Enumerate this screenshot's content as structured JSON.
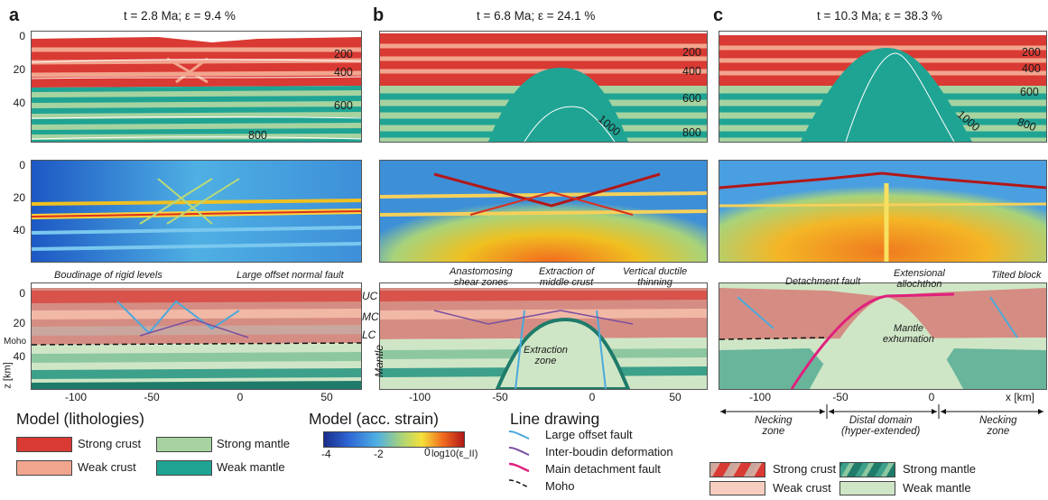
{
  "columns": [
    {
      "letter": "a",
      "title": "t = 2.8 Ma; ε = 9.4 %"
    },
    {
      "letter": "b",
      "title": "t = 6.8 Ma; ε = 24.1 %"
    },
    {
      "letter": "c",
      "title": "t = 10.3 Ma; ε = 38.3 %"
    }
  ],
  "depth_ticks": [
    "0",
    "20",
    "40"
  ],
  "depth_ticks_bottom": [
    "0",
    "20",
    "40"
  ],
  "x_ticks_a": [
    "-100",
    "-50",
    "0",
    "50"
  ],
  "x_ticks_b": [
    "-100",
    "-50",
    "0",
    "50"
  ],
  "x_ticks_c": [
    "-100",
    "-50",
    "0"
  ],
  "x_axis_label": "x [km]",
  "z_axis_label": "z [km]",
  "isotherms_a": [
    "200",
    "400",
    "600",
    "800"
  ],
  "isotherms_b": [
    "200",
    "400",
    "600",
    "1000",
    "800"
  ],
  "isotherms_c": [
    "200",
    "400",
    "600",
    "1000",
    "800"
  ],
  "annotations_a": {
    "boudinage": "Boudinage of rigid levels",
    "large_offset": "Large offset normal fault",
    "moho": "Moho",
    "uc": "UC",
    "mc": "MC",
    "lc": "LC",
    "mantle": "Mantle"
  },
  "annotations_b": {
    "anastomosing": "Anastomosing\nshear zones",
    "extraction_middle": "Extraction of\nmiddle crust",
    "vertical_ductile": "Vertical ductile\nthinning",
    "extraction_zone": "Extraction\nzone"
  },
  "annotations_c": {
    "detachment": "Detachment fault",
    "extensional": "Extensional\nallochthon",
    "tilted": "Tilted block",
    "exhumation": "Mantle\nexhumation"
  },
  "domains": {
    "necking_left": "Necking\nzone",
    "distal": "Distal domain\n(hyper-extended)",
    "necking_right": "Necking\nzone"
  },
  "legend_lithologies": {
    "title": "Model (lithologies)",
    "items": [
      {
        "label": "Strong crust",
        "color": "#d93a33"
      },
      {
        "label": "Strong mantle",
        "color": "#a6d3a0"
      },
      {
        "label": "Weak crust",
        "color": "#f2a58e"
      },
      {
        "label": "Weak mantle",
        "color": "#1fa494"
      }
    ]
  },
  "legend_strain": {
    "title": "Model (acc. strain)",
    "ticks": [
      "-4",
      "-2",
      "0"
    ],
    "unit": "log10(ε_II)"
  },
  "legend_lines": {
    "title": "Line drawing",
    "items": [
      {
        "label": "Large offset fault",
        "color": "#4aa9dc"
      },
      {
        "label": "Inter-boudin deformation",
        "color": "#7a4fa0"
      },
      {
        "label": "Main detachment fault",
        "color": "#e0207e"
      },
      {
        "label": "Moho",
        "color": "#111111"
      }
    ]
  },
  "legend_drawing": {
    "items": [
      {
        "label": "Strong crust"
      },
      {
        "label": "Strong mantle"
      },
      {
        "label": "Weak crust"
      },
      {
        "label": "Weak mantle"
      }
    ]
  }
}
